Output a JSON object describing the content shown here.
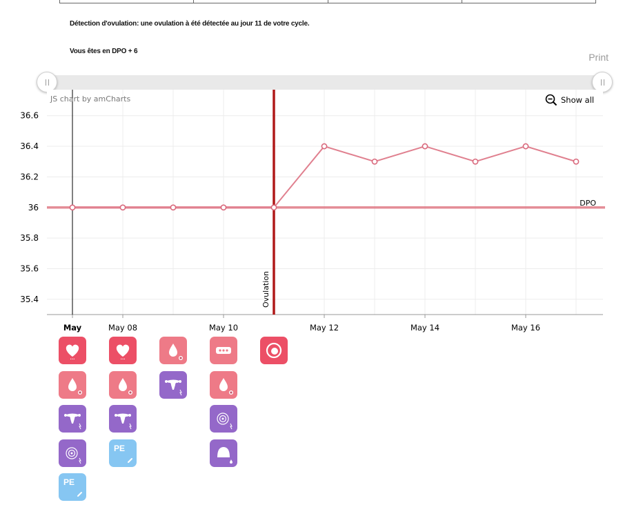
{
  "messages": {
    "ovulation_detection": "Détection d'ovulation: une ovulation à été détectée au jour 11 de votre cycle.",
    "dpo_status": "Vous êtes en DPO + 6"
  },
  "print_label": "Print",
  "credit": "JS chart by amCharts",
  "zoom_out_label": "Show all",
  "colors": {
    "series_line": "#e0808f",
    "point_stroke": "#d9687c",
    "ovulation_line": "#b01919",
    "dpo_line": "#e07a86",
    "heart_tile": "#ec4f66",
    "drop_tile": "#ee7a87",
    "test_tile": "#9468c9",
    "pe_tile": "#86c6f2"
  },
  "chart_data": {
    "type": "line",
    "y_ticks": [
      "36.6",
      "36.4",
      "36.2",
      "36",
      "35.8",
      "35.6",
      "35.4"
    ],
    "ylim": [
      35.3,
      36.77
    ],
    "x_labels": [
      {
        "label": "May",
        "day": 0,
        "bold": true
      },
      {
        "label": "May 08",
        "day": 1,
        "bold": false
      },
      {
        "label": "May 10",
        "day": 3,
        "bold": false
      },
      {
        "label": "May 12",
        "day": 5,
        "bold": false
      },
      {
        "label": "May 14",
        "day": 7,
        "bold": false
      },
      {
        "label": "May 16",
        "day": 9,
        "bold": false
      }
    ],
    "series": [
      {
        "days": [
          0,
          1,
          2,
          3,
          4,
          5,
          6,
          7,
          8,
          9,
          10
        ],
        "values": [
          36.0,
          36.0,
          36.0,
          36.0,
          36.0,
          36.4,
          36.3,
          36.4,
          36.3,
          36.4,
          36.3
        ]
      }
    ],
    "guides": [
      {
        "type": "horizontal",
        "value": 36.0,
        "label": "DPO"
      },
      {
        "type": "vertical",
        "day": 4,
        "label": "Ovulation"
      }
    ],
    "cursor_day": 0
  },
  "icon_columns": [
    {
      "day": 0,
      "icons": [
        {
          "name": "heart-icon",
          "kind": "heart"
        },
        {
          "name": "drop-icon",
          "kind": "drop"
        },
        {
          "name": "uterus-test-icon",
          "kind": "uterus"
        },
        {
          "name": "cervix-icon",
          "kind": "cervix"
        },
        {
          "name": "pe-icon",
          "kind": "pe",
          "text": "PE"
        }
      ]
    },
    {
      "day": 1,
      "icons": [
        {
          "name": "heart-icon",
          "kind": "heart"
        },
        {
          "name": "drop-icon",
          "kind": "drop"
        },
        {
          "name": "uterus-test-icon",
          "kind": "uterus"
        },
        {
          "name": "pe-icon",
          "kind": "pe",
          "text": "PE"
        }
      ]
    },
    {
      "day": 2,
      "icons": [
        {
          "name": "drop-icon",
          "kind": "drop"
        },
        {
          "name": "uterus-test-icon",
          "kind": "uterus"
        }
      ]
    },
    {
      "day": 3,
      "icons": [
        {
          "name": "pill-strip-icon",
          "kind": "strip"
        },
        {
          "name": "drop-icon",
          "kind": "drop"
        },
        {
          "name": "cervix-icon",
          "kind": "cervix"
        },
        {
          "name": "dome-icon",
          "kind": "dome"
        }
      ]
    },
    {
      "day": 4,
      "icons": [
        {
          "name": "ovulation-marker-icon",
          "kind": "ovulation"
        }
      ]
    }
  ]
}
